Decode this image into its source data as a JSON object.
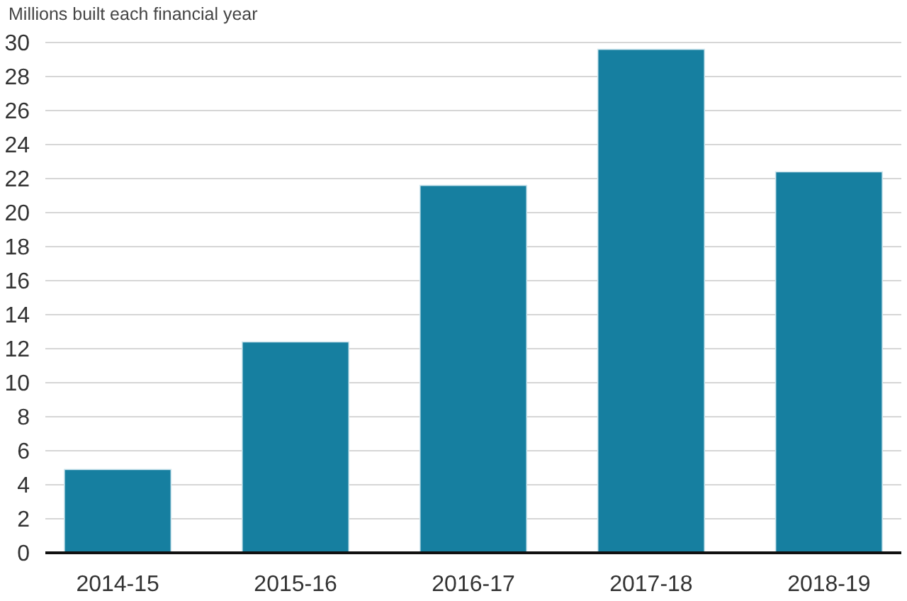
{
  "chart_data": {
    "type": "bar",
    "ylabel": "Millions built each financial year",
    "categories": [
      "2014-15",
      "2015-16",
      "2016-17",
      "2017-18",
      "2018-19"
    ],
    "values": [
      4.9,
      12.4,
      21.6,
      29.6,
      22.4
    ],
    "color": "#167fa0",
    "ylim": [
      0,
      30
    ],
    "yticks": [
      0,
      2,
      4,
      6,
      8,
      10,
      12,
      14,
      16,
      18,
      20,
      22,
      24,
      26,
      28,
      30
    ],
    "grid": "y"
  }
}
